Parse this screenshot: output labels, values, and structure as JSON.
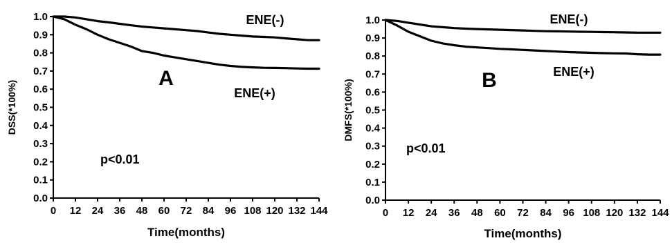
{
  "chart_data": [
    {
      "type": "line",
      "panel_label": "A",
      "xlabel": "Time(months)",
      "ylabel": "DSS(*100%)",
      "xlim": [
        0,
        144
      ],
      "ylim": [
        0.0,
        1.0
      ],
      "xticks": [
        0,
        12,
        24,
        36,
        48,
        60,
        72,
        84,
        96,
        108,
        120,
        132,
        144
      ],
      "yticks": [
        "0.0",
        "0.1",
        "0.2",
        "0.3",
        "0.4",
        "0.5",
        "0.6",
        "0.7",
        "0.8",
        "0.9",
        "1.0"
      ],
      "grid": false,
      "annotation": "p<0.01",
      "series": [
        {
          "name": "ENE(-)",
          "x": [
            0,
            6,
            12,
            18,
            24,
            30,
            36,
            42,
            48,
            54,
            60,
            66,
            72,
            78,
            84,
            90,
            96,
            102,
            108,
            114,
            120,
            126,
            132,
            138,
            144
          ],
          "y": [
            1.0,
            1.0,
            0.995,
            0.985,
            0.975,
            0.968,
            0.96,
            0.952,
            0.945,
            0.94,
            0.935,
            0.93,
            0.925,
            0.92,
            0.912,
            0.905,
            0.9,
            0.895,
            0.89,
            0.888,
            0.885,
            0.88,
            0.875,
            0.87,
            0.87
          ]
        },
        {
          "name": "ENE(+)",
          "x": [
            0,
            6,
            12,
            18,
            24,
            30,
            36,
            42,
            48,
            54,
            60,
            66,
            72,
            78,
            84,
            90,
            96,
            102,
            108,
            114,
            120,
            126,
            132,
            138,
            144
          ],
          "y": [
            1.0,
            0.985,
            0.955,
            0.93,
            0.9,
            0.875,
            0.855,
            0.835,
            0.81,
            0.8,
            0.785,
            0.775,
            0.765,
            0.755,
            0.745,
            0.735,
            0.728,
            0.723,
            0.72,
            0.718,
            0.717,
            0.716,
            0.714,
            0.713,
            0.713
          ]
        }
      ]
    },
    {
      "type": "line",
      "panel_label": "B",
      "xlabel": "Time(months)",
      "ylabel": "DMFS(*100%)",
      "xlim": [
        0,
        144
      ],
      "ylim": [
        0.0,
        1.0
      ],
      "xticks": [
        0,
        12,
        24,
        36,
        48,
        60,
        72,
        84,
        96,
        108,
        120,
        132,
        144
      ],
      "yticks": [
        "0.0",
        "0.1",
        "0.2",
        "0.3",
        "0.4",
        "0.5",
        "0.6",
        "0.7",
        "0.8",
        "0.9",
        "1.0"
      ],
      "grid": false,
      "annotation": "p<0.01",
      "series": [
        {
          "name": "ENE(-)",
          "x": [
            0,
            6,
            12,
            18,
            24,
            30,
            36,
            42,
            48,
            54,
            60,
            66,
            72,
            78,
            84,
            90,
            96,
            102,
            108,
            114,
            120,
            126,
            132,
            138,
            144
          ],
          "y": [
            1.0,
            0.995,
            0.985,
            0.975,
            0.965,
            0.96,
            0.955,
            0.952,
            0.95,
            0.948,
            0.946,
            0.944,
            0.942,
            0.94,
            0.938,
            0.937,
            0.936,
            0.935,
            0.934,
            0.933,
            0.932,
            0.931,
            0.93,
            0.93,
            0.93
          ]
        },
        {
          "name": "ENE(+)",
          "x": [
            0,
            6,
            12,
            18,
            24,
            30,
            36,
            42,
            48,
            54,
            60,
            66,
            72,
            78,
            84,
            90,
            96,
            102,
            108,
            114,
            120,
            126,
            132,
            138,
            144
          ],
          "y": [
            1.0,
            0.97,
            0.935,
            0.91,
            0.885,
            0.87,
            0.86,
            0.852,
            0.848,
            0.844,
            0.84,
            0.837,
            0.834,
            0.831,
            0.828,
            0.825,
            0.822,
            0.82,
            0.818,
            0.816,
            0.815,
            0.814,
            0.81,
            0.808,
            0.808
          ]
        }
      ]
    }
  ]
}
